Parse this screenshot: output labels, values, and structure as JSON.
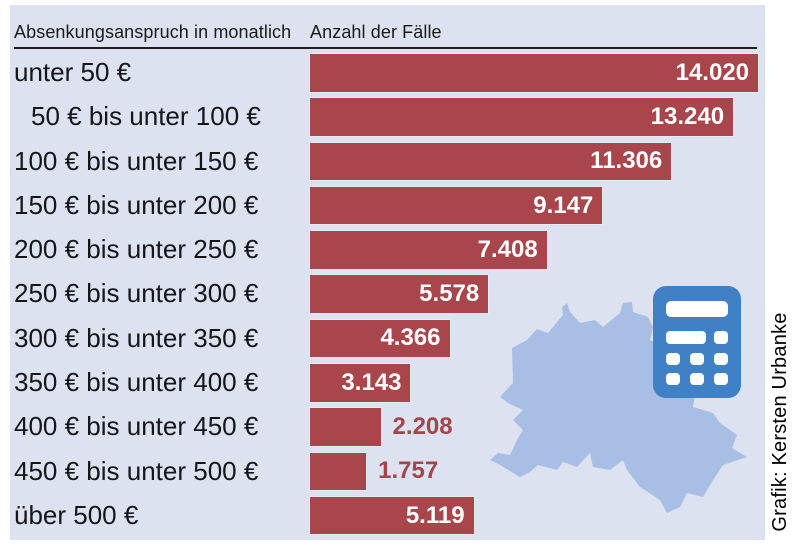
{
  "header": {
    "col1": "Absenkungsanspruch in monatlich",
    "col2": "Anzahl der Fälle"
  },
  "credit": {
    "text": "Grafik: Kersten Urbanke"
  },
  "icons": {
    "map": "berlin-map-silhouette",
    "calculator": "calculator-icon"
  },
  "colors": {
    "page_background": "#ffffff",
    "panel_background": "#dce2f0",
    "bar": "#a9464b",
    "value_inside": "#ffffff",
    "value_outside": "#a4454b",
    "header_text": "#1a1a1a",
    "label_text": "#15151a",
    "map_fill": "#a9bee4",
    "calculator_fill": "#3f81c4"
  },
  "chart_data": {
    "type": "bar",
    "orientation": "horizontal",
    "title": "",
    "xlabel": "Anzahl der Fälle",
    "ylabel": "Absenkungsanspruch in monatlich",
    "grid": false,
    "legend": false,
    "xlim": [
      0,
      14020
    ],
    "categories": [
      "unter 50 €",
      "50 € bis unter 100 €",
      "100 € bis unter 150 €",
      "150 € bis unter 200 €",
      "200 € bis unter 250 €",
      "250 € bis unter 300 €",
      "300 € bis unter 350 €",
      "350 € bis unter 400 €",
      "400 € bis unter 450 €",
      "450 € bis unter 500 €",
      "über 500 €"
    ],
    "values": [
      14020,
      13240,
      11306,
      9147,
      7408,
      5578,
      4366,
      3143,
      2208,
      1757,
      5119
    ],
    "value_labels": [
      "14.020",
      "13.240",
      "11.306",
      "9.147",
      "7.408",
      "5.578",
      "4.366",
      "3.143",
      "2.208",
      "1.757",
      "5.119"
    ],
    "value_label_inside": [
      true,
      true,
      true,
      true,
      true,
      true,
      true,
      true,
      false,
      false,
      true
    ],
    "indent_rows": [
      1
    ]
  }
}
